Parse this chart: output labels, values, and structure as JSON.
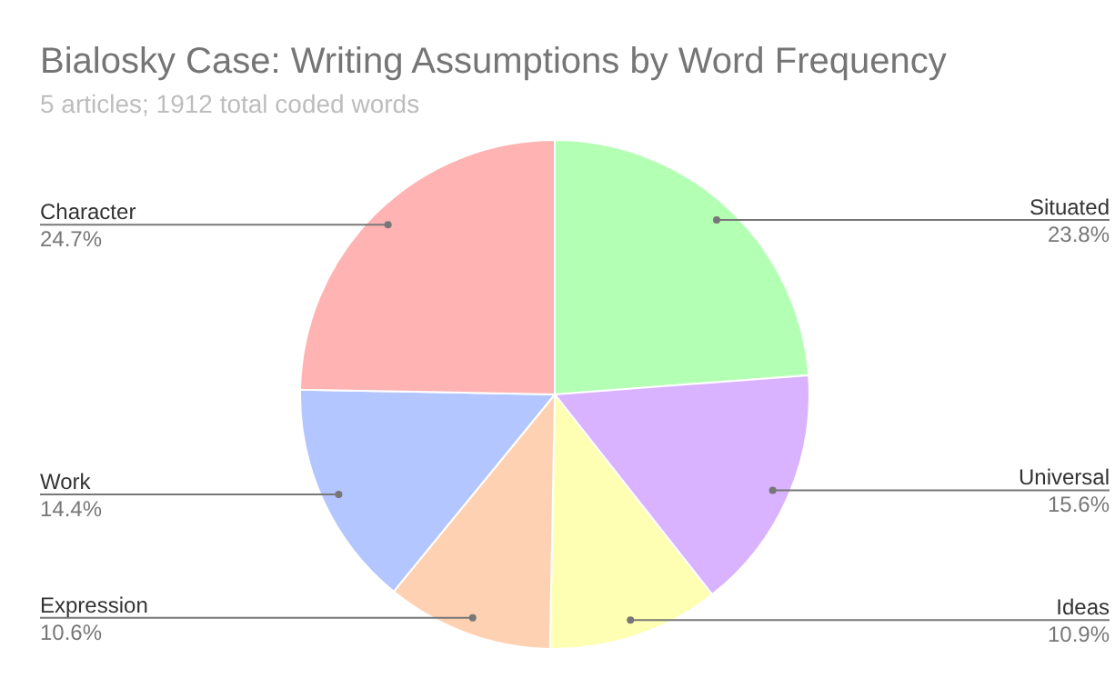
{
  "chart_data": {
    "type": "pie",
    "title": "Bialosky Case: Writing Assumptions by Word Frequency",
    "subtitle": "5 articles; 1912 total coded words",
    "categories": [
      "Situated",
      "Universal",
      "Ideas",
      "Expression",
      "Work",
      "Character"
    ],
    "values": [
      23.8,
      15.6,
      10.9,
      10.6,
      14.4,
      24.7
    ],
    "value_labels": [
      "23.8%",
      "15.6%",
      "10.9%",
      "10.6%",
      "14.4%",
      "24.7%"
    ],
    "colors": [
      "#b3ffb3",
      "#d9b3ff",
      "#ffffb3",
      "#ffd1b3",
      "#b3c6ff",
      "#ffb3b3"
    ]
  }
}
